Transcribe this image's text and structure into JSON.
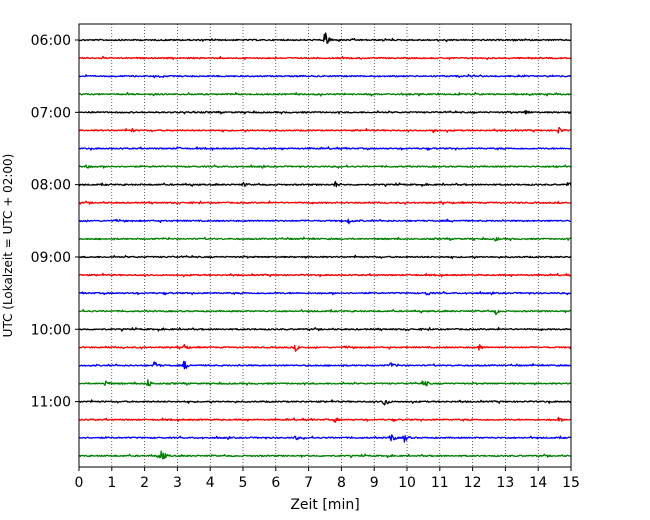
{
  "chart_data": {
    "type": "line",
    "title": "",
    "xlabel": "Zeit  [min]",
    "ylabel": "UTC (Lokalzeit = UTC + 02:00)",
    "xlim": [
      0,
      15
    ],
    "x_ticks": [
      "0",
      "1",
      "2",
      "3",
      "4",
      "5",
      "6",
      "7",
      "8",
      "9",
      "10",
      "11",
      "12",
      "13",
      "14",
      "15"
    ],
    "y_ticks": [
      "06:00",
      "07:00",
      "08:00",
      "09:00",
      "10:00",
      "11:00"
    ],
    "grid": "vertical dotted",
    "colors": [
      "#000000",
      "#ff0000",
      "#0000ff",
      "#008000"
    ],
    "traces": [
      {
        "start": "06:00",
        "color": "#000000",
        "events": [
          [
            7.5,
            1.0
          ]
        ]
      },
      {
        "start": "06:15",
        "color": "#ff0000",
        "events": []
      },
      {
        "start": "06:30",
        "color": "#0000ff",
        "events": []
      },
      {
        "start": "06:45",
        "color": "#008000",
        "events": []
      },
      {
        "start": "07:00",
        "color": "#000000",
        "events": [
          [
            13.6,
            0.35
          ]
        ]
      },
      {
        "start": "07:15",
        "color": "#ff0000",
        "events": [
          [
            1.6,
            0.3
          ],
          [
            10.8,
            0.3
          ],
          [
            14.6,
            0.5
          ]
        ]
      },
      {
        "start": "07:30",
        "color": "#0000ff",
        "events": [
          [
            3.0,
            0.25
          ]
        ]
      },
      {
        "start": "07:45",
        "color": "#008000",
        "events": [
          [
            0.2,
            0.35
          ],
          [
            14.5,
            0.3
          ]
        ]
      },
      {
        "start": "08:00",
        "color": "#000000",
        "events": [
          [
            5.0,
            0.3
          ],
          [
            7.8,
            0.45
          ],
          [
            14.9,
            0.35
          ]
        ]
      },
      {
        "start": "08:15",
        "color": "#ff0000",
        "events": []
      },
      {
        "start": "08:30",
        "color": "#0000ff",
        "events": [
          [
            8.2,
            0.45
          ]
        ]
      },
      {
        "start": "08:45",
        "color": "#008000",
        "events": [
          [
            12.7,
            0.3
          ]
        ]
      },
      {
        "start": "09:00",
        "color": "#000000",
        "events": []
      },
      {
        "start": "09:15",
        "color": "#ff0000",
        "events": []
      },
      {
        "start": "09:30",
        "color": "#0000ff",
        "events": [
          [
            10.6,
            0.35
          ]
        ]
      },
      {
        "start": "09:45",
        "color": "#008000",
        "events": [
          [
            12.7,
            0.4
          ]
        ]
      },
      {
        "start": "10:00",
        "color": "#000000",
        "events": []
      },
      {
        "start": "10:15",
        "color": "#ff0000",
        "events": [
          [
            3.2,
            0.45
          ],
          [
            6.6,
            0.45
          ],
          [
            12.2,
            0.45
          ]
        ]
      },
      {
        "start": "10:30",
        "color": "#0000ff",
        "events": [
          [
            2.3,
            0.55
          ],
          [
            3.2,
            0.6
          ],
          [
            9.5,
            0.4
          ]
        ]
      },
      {
        "start": "10:45",
        "color": "#008000",
        "events": [
          [
            0.8,
            0.45
          ],
          [
            2.1,
            0.5
          ],
          [
            10.5,
            0.6
          ]
        ]
      },
      {
        "start": "11:00",
        "color": "#000000",
        "events": [
          [
            9.3,
            0.65
          ]
        ]
      },
      {
        "start": "11:15",
        "color": "#ff0000",
        "events": [
          [
            7.8,
            0.35
          ],
          [
            14.6,
            0.3
          ]
        ]
      },
      {
        "start": "11:30",
        "color": "#0000ff",
        "events": [
          [
            6.6,
            0.3
          ],
          [
            9.5,
            0.6
          ],
          [
            9.9,
            0.6
          ]
        ]
      },
      {
        "start": "11:45",
        "color": "#008000",
        "events": [
          [
            2.5,
            0.8
          ]
        ]
      }
    ]
  }
}
